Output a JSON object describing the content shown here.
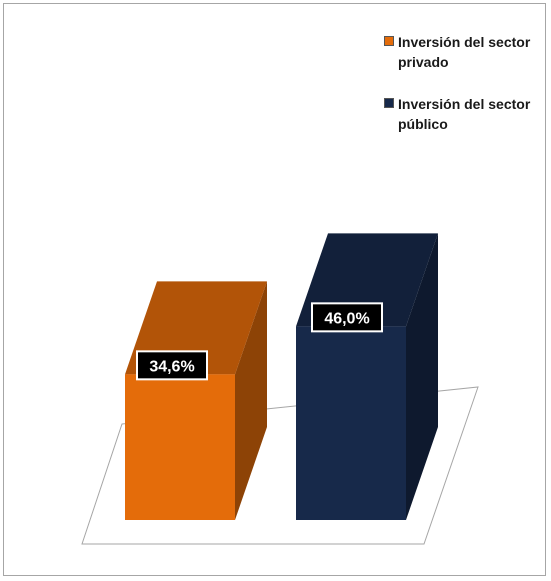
{
  "chart_data": {
    "type": "bar",
    "categories": [
      "Inversión del sector privado",
      "Inversión del sector público"
    ],
    "values": [
      34.6,
      46.0
    ],
    "data_labels": [
      "34,6%",
      "46,0%"
    ],
    "unit": "%",
    "title": "",
    "xlabel": "",
    "ylabel": "",
    "ylim": [
      0,
      60
    ],
    "grid": false,
    "legend_position": "top-right",
    "series": [
      {
        "name": "Inversión del sector privado",
        "value": 34.6,
        "label": "34,6%",
        "color": "#e46c0a"
      },
      {
        "name": "Inversión del sector público",
        "value": 46.0,
        "label": "46,0%",
        "color": "#17294a"
      }
    ],
    "style": "3d-column"
  },
  "legend": {
    "items": [
      {
        "label": "Inversión del sector privado",
        "color": "#e46c0a"
      },
      {
        "label": "Inversión del sector público",
        "color": "#17294a"
      }
    ]
  }
}
